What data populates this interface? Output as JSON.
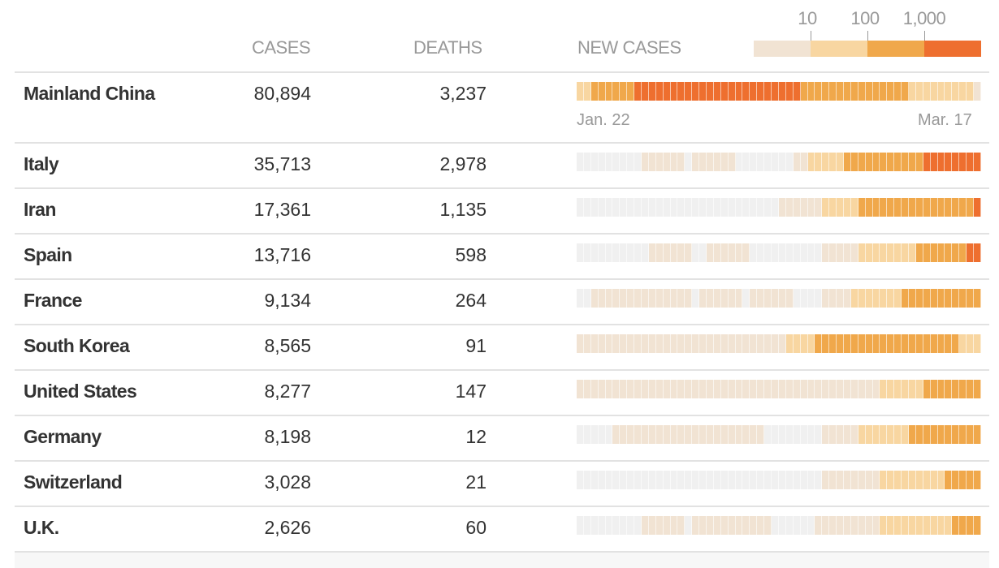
{
  "header": {
    "cases": "CASES",
    "deaths": "DEATHS",
    "new_cases": "NEW CASES"
  },
  "legend": {
    "ticks": [
      "10",
      "100",
      "1,000"
    ],
    "colors": [
      "#f1e3d3",
      "#f8d6a1",
      "#f0a84b",
      "#ee6f2f"
    ],
    "none_color": "#f0f0f0"
  },
  "dates": {
    "start": "Jan. 22",
    "end": "Mar. 17"
  },
  "chart_data": {
    "type": "heatmap",
    "title": "NEW CASES",
    "x_range": [
      "Jan. 22",
      "Mar. 17"
    ],
    "levels": [
      "0",
      "1-10",
      "10-100",
      "100-1,000",
      "1,000+"
    ],
    "note": "runs are [level,days]",
    "rows": [
      {
        "name": "Mainland China",
        "cases": "80,894",
        "deaths": "3,237",
        "runs": [
          [
            2,
            2
          ],
          [
            3,
            6
          ],
          [
            4,
            23
          ],
          [
            3,
            15
          ],
          [
            2,
            9
          ],
          [
            1,
            1
          ]
        ]
      },
      {
        "name": "Italy",
        "cases": "35,713",
        "deaths": "2,978",
        "runs": [
          [
            0,
            9
          ],
          [
            1,
            6
          ],
          [
            0,
            1
          ],
          [
            1,
            6
          ],
          [
            0,
            8
          ],
          [
            1,
            2
          ],
          [
            2,
            5
          ],
          [
            3,
            11
          ],
          [
            4,
            8
          ]
        ]
      },
      {
        "name": "Iran",
        "cases": "17,361",
        "deaths": "1,135",
        "runs": [
          [
            0,
            28
          ],
          [
            1,
            6
          ],
          [
            2,
            5
          ],
          [
            3,
            16
          ],
          [
            4,
            1
          ]
        ]
      },
      {
        "name": "Spain",
        "cases": "13,716",
        "deaths": "598",
        "runs": [
          [
            0,
            10
          ],
          [
            1,
            6
          ],
          [
            0,
            2
          ],
          [
            1,
            6
          ],
          [
            0,
            10
          ],
          [
            1,
            5
          ],
          [
            2,
            8
          ],
          [
            3,
            7
          ],
          [
            4,
            2
          ]
        ]
      },
      {
        "name": "France",
        "cases": "9,134",
        "deaths": "264",
        "runs": [
          [
            0,
            2
          ],
          [
            1,
            14
          ],
          [
            0,
            1
          ],
          [
            1,
            6
          ],
          [
            0,
            1
          ],
          [
            1,
            6
          ],
          [
            0,
            4
          ],
          [
            1,
            4
          ],
          [
            2,
            7
          ],
          [
            3,
            11
          ]
        ]
      },
      {
        "name": "South Korea",
        "cases": "8,565",
        "deaths": "91",
        "runs": [
          [
            1,
            29
          ],
          [
            2,
            4
          ],
          [
            3,
            20
          ],
          [
            2,
            3
          ]
        ]
      },
      {
        "name": "United States",
        "cases": "8,277",
        "deaths": "147",
        "runs": [
          [
            1,
            42
          ],
          [
            2,
            6
          ],
          [
            3,
            8
          ]
        ]
      },
      {
        "name": "Germany",
        "cases": "8,198",
        "deaths": "12",
        "runs": [
          [
            0,
            5
          ],
          [
            1,
            21
          ],
          [
            0,
            8
          ],
          [
            1,
            5
          ],
          [
            2,
            7
          ],
          [
            3,
            10
          ]
        ]
      },
      {
        "name": "Switzerland",
        "cases": "3,028",
        "deaths": "21",
        "runs": [
          [
            0,
            34
          ],
          [
            1,
            8
          ],
          [
            2,
            9
          ],
          [
            3,
            5
          ]
        ]
      },
      {
        "name": "U.K.",
        "cases": "2,626",
        "deaths": "60",
        "runs": [
          [
            0,
            9
          ],
          [
            1,
            6
          ],
          [
            0,
            1
          ],
          [
            1,
            11
          ],
          [
            0,
            6
          ],
          [
            1,
            9
          ],
          [
            2,
            10
          ],
          [
            3,
            4
          ]
        ]
      }
    ]
  }
}
